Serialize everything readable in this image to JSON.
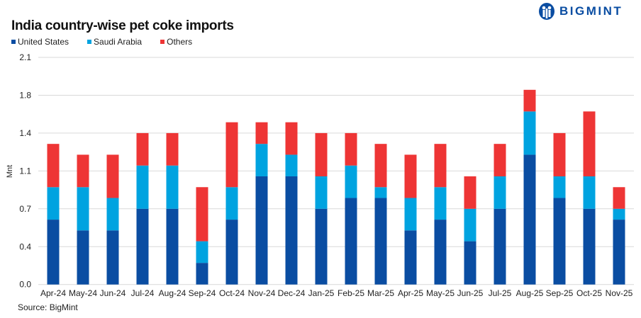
{
  "logo": {
    "text": "BIGMINT"
  },
  "chart_data": {
    "type": "bar",
    "stacked": true,
    "title": "India country-wise pet coke imports",
    "ylabel": "Mnt",
    "xlabel": "",
    "ylim": [
      0,
      2.1
    ],
    "yticks": [
      "0.0",
      "0.4",
      "0.7",
      "1.1",
      "1.4",
      "1.8",
      "2.1"
    ],
    "grid": true,
    "legend_position": "top-left",
    "source": "Source: BigMint",
    "categories": [
      "Apr-24",
      "May-24",
      "Jun-24",
      "Jul-24",
      "Aug-24",
      "Sep-24",
      "Oct-24",
      "Nov-24",
      "Dec-24",
      "Jan-25",
      "Feb-25",
      "Mar-25",
      "Apr-25",
      "May-25",
      "Jun-25",
      "Jul-25",
      "Aug-25",
      "Sep-25",
      "Oct-25",
      "Nov-25"
    ],
    "series": [
      {
        "name": "United States",
        "color": "#0A4DA2",
        "values": [
          0.6,
          0.5,
          0.5,
          0.7,
          0.7,
          0.2,
          0.6,
          1.0,
          1.0,
          0.7,
          0.8,
          0.8,
          0.5,
          0.6,
          0.4,
          0.7,
          1.2,
          0.8,
          0.7,
          0.6
        ]
      },
      {
        "name": "Saudi Arabia",
        "color": "#00A3E0",
        "values": [
          0.3,
          0.4,
          0.3,
          0.4,
          0.4,
          0.2,
          0.3,
          0.3,
          0.2,
          0.3,
          0.3,
          0.1,
          0.3,
          0.3,
          0.3,
          0.3,
          0.4,
          0.2,
          0.3,
          0.1
        ]
      },
      {
        "name": "Others",
        "color": "#EE3535",
        "values": [
          0.4,
          0.3,
          0.4,
          0.3,
          0.3,
          0.5,
          0.6,
          0.2,
          0.3,
          0.4,
          0.3,
          0.4,
          0.4,
          0.4,
          0.3,
          0.3,
          0.2,
          0.4,
          0.6,
          0.2
        ]
      }
    ]
  }
}
